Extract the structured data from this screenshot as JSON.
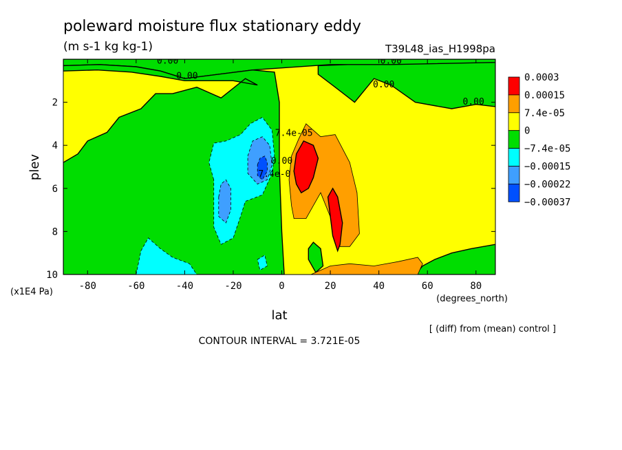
{
  "chart_data": {
    "type": "heatmap",
    "title": "poleward moisture flux stationary eddy",
    "units": "(m s-1 kg kg-1)",
    "run_label": "T39L48_ias_H1998pa",
    "xlabel": "lat",
    "x_units": "(degrees_north)",
    "ylabel": "plev",
    "y_units": "(x1E4 Pa)",
    "footer_note": "[ (diff) from (mean) control ]",
    "contour_interval_text": "CONTOUR INTERVAL = 3.721E-05",
    "xlim": [
      -90,
      88
    ],
    "ylim": [
      10,
      0
    ],
    "x_ticks": [
      -80,
      -60,
      -40,
      -20,
      0,
      20,
      40,
      60,
      80
    ],
    "y_ticks": [
      2,
      4,
      6,
      8,
      10
    ],
    "colorbar": {
      "labels": [
        "0.0003",
        "0.00015",
        "7.4e-05",
        "0",
        "−7.4e-05",
        "−0.00015",
        "−0.00022",
        "−0.00037"
      ],
      "colors": [
        "#ff0000",
        "#ff9f00",
        "#ffff00",
        "#00dd00",
        "#00ffff",
        "#3f9fff",
        "#0050ff"
      ]
    },
    "contour_labels": [
      {
        "text": "0.00",
        "lon": -47,
        "p": 0.05
      },
      {
        "text": "0.00",
        "lon": -39,
        "p": 0.75
      },
      {
        "text": "0.00",
        "lon": 45,
        "p": 0.05
      },
      {
        "text": "0.00",
        "lon": 42,
        "p": 1.15
      },
      {
        "text": "0.00",
        "lon": 79,
        "p": 1.95
      },
      {
        "text": "7.4e-0",
        "lon": -3,
        "p": 5.3
      },
      {
        "text": "0.00",
        "lon": 0,
        "p": 4.7
      },
      {
        "text": "7.4e-05",
        "lon": 5,
        "p": 3.4
      }
    ],
    "regions": [
      {
        "name": "green-mid-nh-band",
        "level": "-7.4e-05",
        "color": "#00dd00",
        "pts": [
          [
            15,
            0.3
          ],
          [
            38,
            0.2
          ],
          [
            58,
            0.15
          ],
          [
            88,
            0.1
          ],
          [
            88,
            2.2
          ],
          [
            80,
            2.1
          ],
          [
            70,
            2.3
          ],
          [
            55,
            2.0
          ],
          [
            45,
            1.2
          ],
          [
            38,
            0.9
          ],
          [
            30,
            2.0
          ],
          [
            22,
            1.3
          ],
          [
            15,
            0.7
          ]
        ]
      },
      {
        "name": "green-top-cap",
        "level": "-7.4e-05",
        "color": "#00dd00",
        "pts": [
          [
            -90,
            0
          ],
          [
            88,
            0
          ],
          [
            88,
            0.15
          ],
          [
            45,
            0.25
          ],
          [
            20,
            0.25
          ],
          [
            -12,
            0.5
          ],
          [
            -40,
            0.9
          ],
          [
            -50,
            0.55
          ],
          [
            -60,
            0.35
          ],
          [
            -75,
            0.25
          ],
          [
            -90,
            0.3
          ]
        ]
      },
      {
        "name": "green-sh-region",
        "level": "-7.4e-05",
        "color": "#00dd00",
        "pts": [
          [
            -90,
            0.3
          ],
          [
            -75,
            0.25
          ],
          [
            -60,
            0.35
          ],
          [
            -50,
            0.55
          ],
          [
            -40,
            0.9
          ],
          [
            -12,
            0.5
          ],
          [
            -3,
            0.6
          ],
          [
            -1,
            2
          ],
          [
            -1,
            5
          ],
          [
            0,
            8
          ],
          [
            1,
            10
          ],
          [
            -90,
            10
          ],
          [
            -90,
            4.8
          ],
          [
            -84,
            4.4
          ],
          [
            -80,
            3.8
          ],
          [
            -72,
            3.4
          ],
          [
            -67,
            2.7
          ],
          [
            -58,
            2.3
          ],
          [
            -52,
            1.6
          ],
          [
            -45,
            1.6
          ],
          [
            -35,
            1.3
          ],
          [
            -25,
            1.8
          ],
          [
            -15,
            0.9
          ],
          [
            -10,
            1.2
          ],
          [
            -20,
            1.0
          ],
          [
            -40,
            1.0
          ],
          [
            -50,
            0.8
          ],
          [
            -62,
            0.6
          ],
          [
            -76,
            0.5
          ],
          [
            -90,
            0.55
          ]
        ]
      },
      {
        "name": "green-small-lobe",
        "level": "-7.4e-05",
        "color": "#00dd00",
        "pts": [
          [
            13,
            8.5
          ],
          [
            16,
            8.8
          ],
          [
            17,
            9.6
          ],
          [
            14,
            9.9
          ],
          [
            11,
            9.3
          ],
          [
            11,
            8.8
          ]
        ]
      },
      {
        "name": "green-bottom-right",
        "level": "-7.4e-05",
        "color": "#00dd00",
        "pts": [
          [
            55,
            10
          ],
          [
            58,
            9.6
          ],
          [
            63,
            9.3
          ],
          [
            70,
            9.0
          ],
          [
            78,
            8.8
          ],
          [
            88,
            8.6
          ],
          [
            88,
            10
          ]
        ]
      },
      {
        "name": "cyan-large-lobe",
        "level": "-0.00015",
        "color": "#00ffff",
        "pts": [
          [
            -28,
            5.6
          ],
          [
            -30,
            4.8
          ],
          [
            -28,
            3.9
          ],
          [
            -23,
            3.8
          ],
          [
            -17,
            3.5
          ],
          [
            -13,
            3.0
          ],
          [
            -8,
            2.7
          ],
          [
            -4,
            3.3
          ],
          [
            -3,
            4.5
          ],
          [
            -4,
            5.3
          ],
          [
            -8,
            6.3
          ],
          [
            -15,
            6.6
          ],
          [
            -17,
            7.3
          ],
          [
            -20,
            8.3
          ],
          [
            -25,
            8.6
          ],
          [
            -28,
            7.8
          ]
        ]
      },
      {
        "name": "cyan-low-lobe",
        "level": "-0.00015",
        "color": "#00ffff",
        "pts": [
          [
            -60,
            10
          ],
          [
            -58,
            8.9
          ],
          [
            -55,
            8.3
          ],
          [
            -50,
            8.8
          ],
          [
            -45,
            9.2
          ],
          [
            -38,
            9.5
          ],
          [
            -35,
            10
          ]
        ]
      },
      {
        "name": "cyan-tiny-patch",
        "level": "-0.00015",
        "color": "#00ffff",
        "pts": [
          [
            -10,
            9.3
          ],
          [
            -7,
            9.1
          ],
          [
            -6,
            9.6
          ],
          [
            -9,
            9.8
          ]
        ]
      },
      {
        "name": "blue-upper-lobe",
        "level": "-0.00022",
        "color": "#3f9fff",
        "pts": [
          [
            -14,
            4.5
          ],
          [
            -12,
            3.8
          ],
          [
            -8,
            3.6
          ],
          [
            -5,
            4.0
          ],
          [
            -4,
            4.9
          ],
          [
            -6,
            5.6
          ],
          [
            -10,
            5.8
          ],
          [
            -14,
            5.3
          ]
        ]
      },
      {
        "name": "blue-mid-lobe",
        "level": "-0.00022",
        "color": "#3f9fff",
        "pts": [
          [
            -26,
            6.4
          ],
          [
            -25,
            5.8
          ],
          [
            -23,
            5.6
          ],
          [
            -21,
            6.0
          ],
          [
            -21,
            7.0
          ],
          [
            -23,
            7.6
          ],
          [
            -26,
            7.3
          ]
        ]
      },
      {
        "name": "blue-core",
        "level": "-0.00037",
        "color": "#0050ff",
        "pts": [
          [
            -10,
            4.9
          ],
          [
            -9,
            4.6
          ],
          [
            -7,
            4.5
          ],
          [
            -6,
            4.8
          ],
          [
            -6,
            5.2
          ],
          [
            -8,
            5.6
          ],
          [
            -10,
            5.4
          ]
        ]
      },
      {
        "name": "orange-lobe",
        "level": "0.00015",
        "color": "#ff9f00",
        "pts": [
          [
            3,
            5.6
          ],
          [
            4,
            4.5
          ],
          [
            7,
            3.7
          ],
          [
            10,
            3.0
          ],
          [
            16,
            3.6
          ],
          [
            22,
            3.5
          ],
          [
            28,
            4.8
          ],
          [
            31,
            6.2
          ],
          [
            32,
            8.1
          ],
          [
            28,
            8.7
          ],
          [
            24,
            8.7
          ],
          [
            21,
            7.6
          ],
          [
            16,
            6.2
          ],
          [
            10,
            7.4
          ],
          [
            5,
            7.4
          ],
          [
            4,
            6.8
          ]
        ]
      },
      {
        "name": "orange-bottom-band",
        "level": "0.00015",
        "color": "#ff9f00",
        "pts": [
          [
            12,
            10
          ],
          [
            20,
            9.6
          ],
          [
            28,
            9.5
          ],
          [
            38,
            9.6
          ],
          [
            48,
            9.4
          ],
          [
            56,
            9.2
          ],
          [
            58,
            9.5
          ],
          [
            56,
            10
          ]
        ]
      },
      {
        "name": "red-upper-lobe",
        "level": "0.0003",
        "color": "#ff0000",
        "pts": [
          [
            5,
            5.2
          ],
          [
            6,
            4.4
          ],
          [
            9,
            3.8
          ],
          [
            13,
            4.0
          ],
          [
            15,
            4.6
          ],
          [
            13,
            5.5
          ],
          [
            11,
            6.0
          ],
          [
            8,
            6.2
          ],
          [
            6,
            5.8
          ]
        ]
      },
      {
        "name": "red-lower-lobe",
        "level": "0.0003",
        "color": "#ff0000",
        "pts": [
          [
            19,
            6.4
          ],
          [
            21,
            6.0
          ],
          [
            23,
            6.4
          ],
          [
            25,
            7.6
          ],
          [
            24,
            8.6
          ],
          [
            23,
            8.9
          ],
          [
            21,
            8.2
          ],
          [
            20,
            7.3
          ]
        ]
      }
    ]
  }
}
